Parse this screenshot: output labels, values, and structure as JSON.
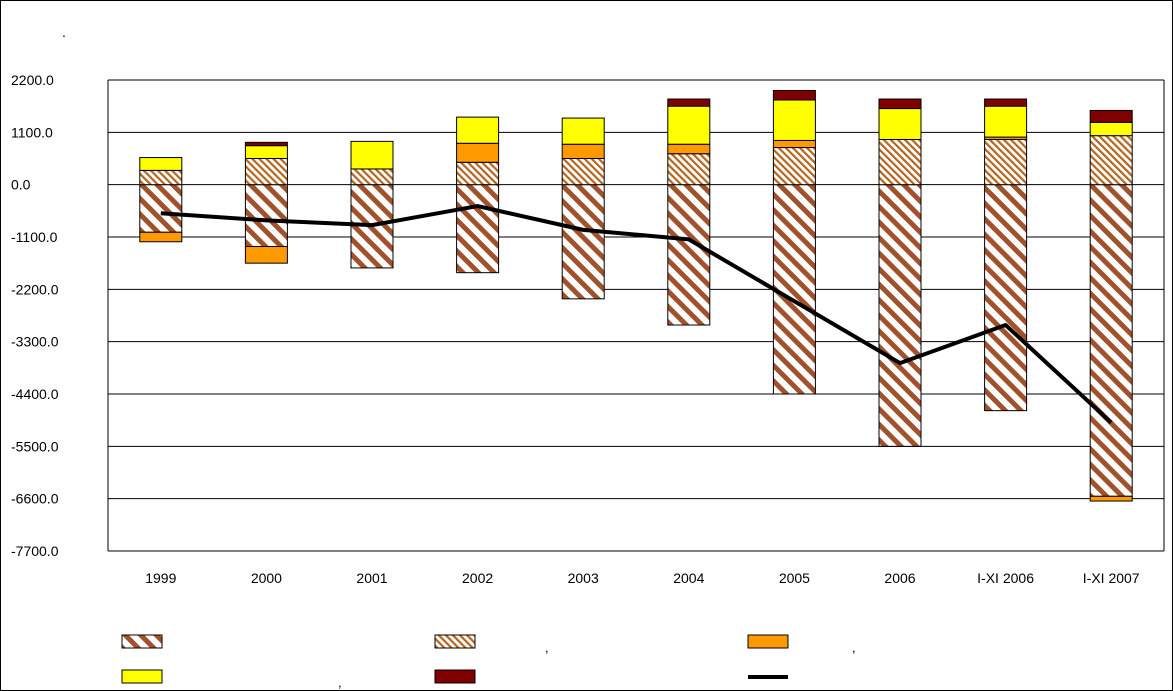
{
  "chart_data": {
    "type": "bar",
    "stacked": true,
    "title": ".",
    "categories": [
      "1999",
      "2000",
      "2001",
      "2002",
      "2003",
      "2004",
      "2005",
      "2006",
      "I-XI 2006",
      "I-XI 2007"
    ],
    "ylim": [
      -7700,
      2200
    ],
    "yticks": [
      "2200.0",
      "1100.0",
      "0.0",
      "-1100.0",
      "-2200.0",
      "-3300.0",
      "-4400.0",
      "-5500.0",
      "-6600.0",
      "-7700.0"
    ],
    "grid": true,
    "legend_position": "bottom",
    "series": [
      {
        "kind": "bar",
        "color": "#a0522d",
        "pattern": "wide-diagonal",
        "values": [
          -1000,
          -1300,
          -1750,
          -1850,
          -2400,
          -2950,
          -4400,
          -5500,
          -4750,
          -6550
        ]
      },
      {
        "kind": "bar",
        "color": "#a0522d",
        "pattern": "fine-diagonal",
        "values": [
          300,
          550,
          330,
          470,
          550,
          650,
          780,
          950,
          950,
          1030
        ]
      },
      {
        "kind": "bar",
        "color": "#ff9900",
        "pattern": "solid",
        "values": [
          -200,
          -350,
          0,
          400,
          300,
          200,
          150,
          0,
          50,
          -100
        ]
      },
      {
        "kind": "bar",
        "color": "#ffff00",
        "pattern": "solid",
        "values": [
          270,
          270,
          580,
          550,
          550,
          800,
          850,
          650,
          650,
          280
        ]
      },
      {
        "kind": "bar",
        "color": "#800000",
        "pattern": "solid",
        "values": [
          0,
          70,
          0,
          0,
          0,
          150,
          200,
          200,
          150,
          250
        ]
      },
      {
        "kind": "line",
        "color": "#000000",
        "values": [
          -600,
          -750,
          -850,
          -450,
          -950,
          -1150,
          -2450,
          -3750,
          -2950,
          -5000
        ]
      }
    ],
    "legend": {
      "separators": [
        "",
        ",",
        ",",
        ",",
        "",
        ""
      ]
    }
  },
  "colors": {
    "background": "#ffffff",
    "grid": "#000000",
    "bar_outline": "#000000"
  }
}
